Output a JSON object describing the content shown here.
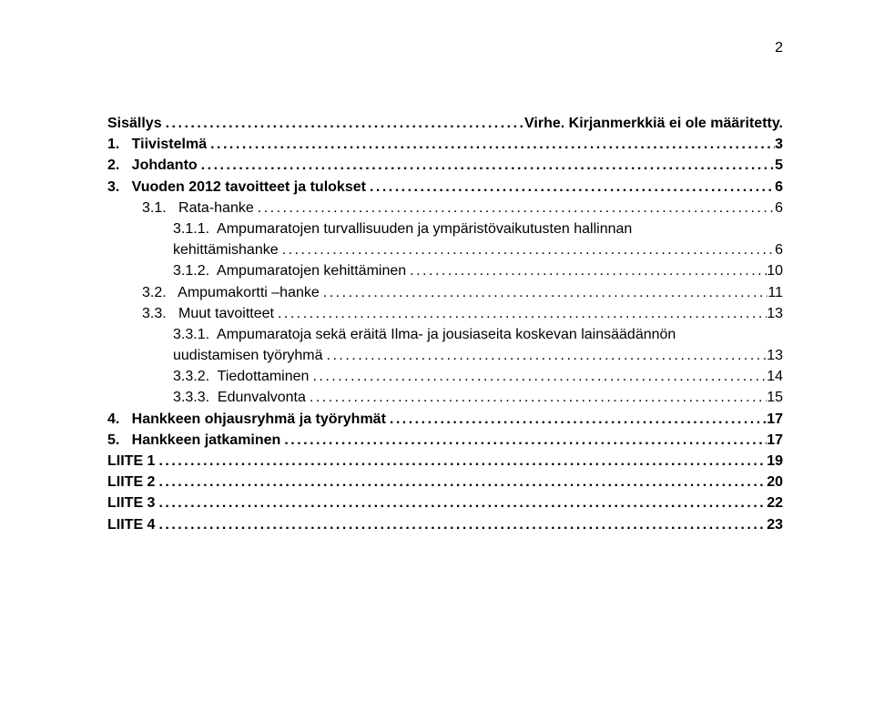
{
  "document": {
    "page_number_display": "2",
    "font_family": "Arial",
    "font_size_pt": 12,
    "text_color": "#000000",
    "background_color": "#ffffff",
    "dot_leader_char": "."
  },
  "toc": [
    {
      "level": 0,
      "label": "Sisällys",
      "page": "Virhe. Kirjanmerkkiä ei ole määritetty.",
      "no_dots": false
    },
    {
      "level": 0,
      "label": "1.   Tiivistelmä",
      "page": "3"
    },
    {
      "level": 0,
      "label": "2.   Johdanto",
      "page": "5"
    },
    {
      "level": 0,
      "label": "3.   Vuoden 2012 tavoitteet ja tulokset",
      "page": "6"
    },
    {
      "level": 1,
      "label": "3.1.   Rata-hanke",
      "page": "6"
    },
    {
      "level": 2,
      "label": "3.1.1.  Ampumaratojen turvallisuuden ja ympäristövaikutusten hallinnan kehittämishanke",
      "page": "6",
      "wrap": true
    },
    {
      "level": 2,
      "label": "3.1.2.  Ampumaratojen kehittäminen",
      "page": "10"
    },
    {
      "level": 1,
      "label": "3.2.   Ampumakortti –hanke",
      "page": "11"
    },
    {
      "level": 1,
      "label": "3.3.   Muut tavoitteet",
      "page": "13"
    },
    {
      "level": 2,
      "label": "3.3.1.  Ampumaratoja sekä eräitä Ilma- ja jousiaseita koskevan lainsäädännön uudistamisen työryhmä",
      "page": "13",
      "wrap": true
    },
    {
      "level": 2,
      "label": "3.3.2.  Tiedottaminen",
      "page": "14"
    },
    {
      "level": 2,
      "label": "3.3.3.  Edunvalvonta",
      "page": "15"
    },
    {
      "level": 0,
      "label": "4.   Hankkeen ohjausryhmä ja työryhmät",
      "page": "17"
    },
    {
      "level": 0,
      "label": "5.   Hankkeen jatkaminen",
      "page": "17"
    },
    {
      "level": 0,
      "label": "LIITE 1",
      "page": "19"
    },
    {
      "level": 0,
      "label": "LIITE 2",
      "page": "20"
    },
    {
      "level": 0,
      "label": "LIITE 3",
      "page": "22"
    },
    {
      "level": 0,
      "label": "LIITE 4",
      "page": "23"
    }
  ]
}
